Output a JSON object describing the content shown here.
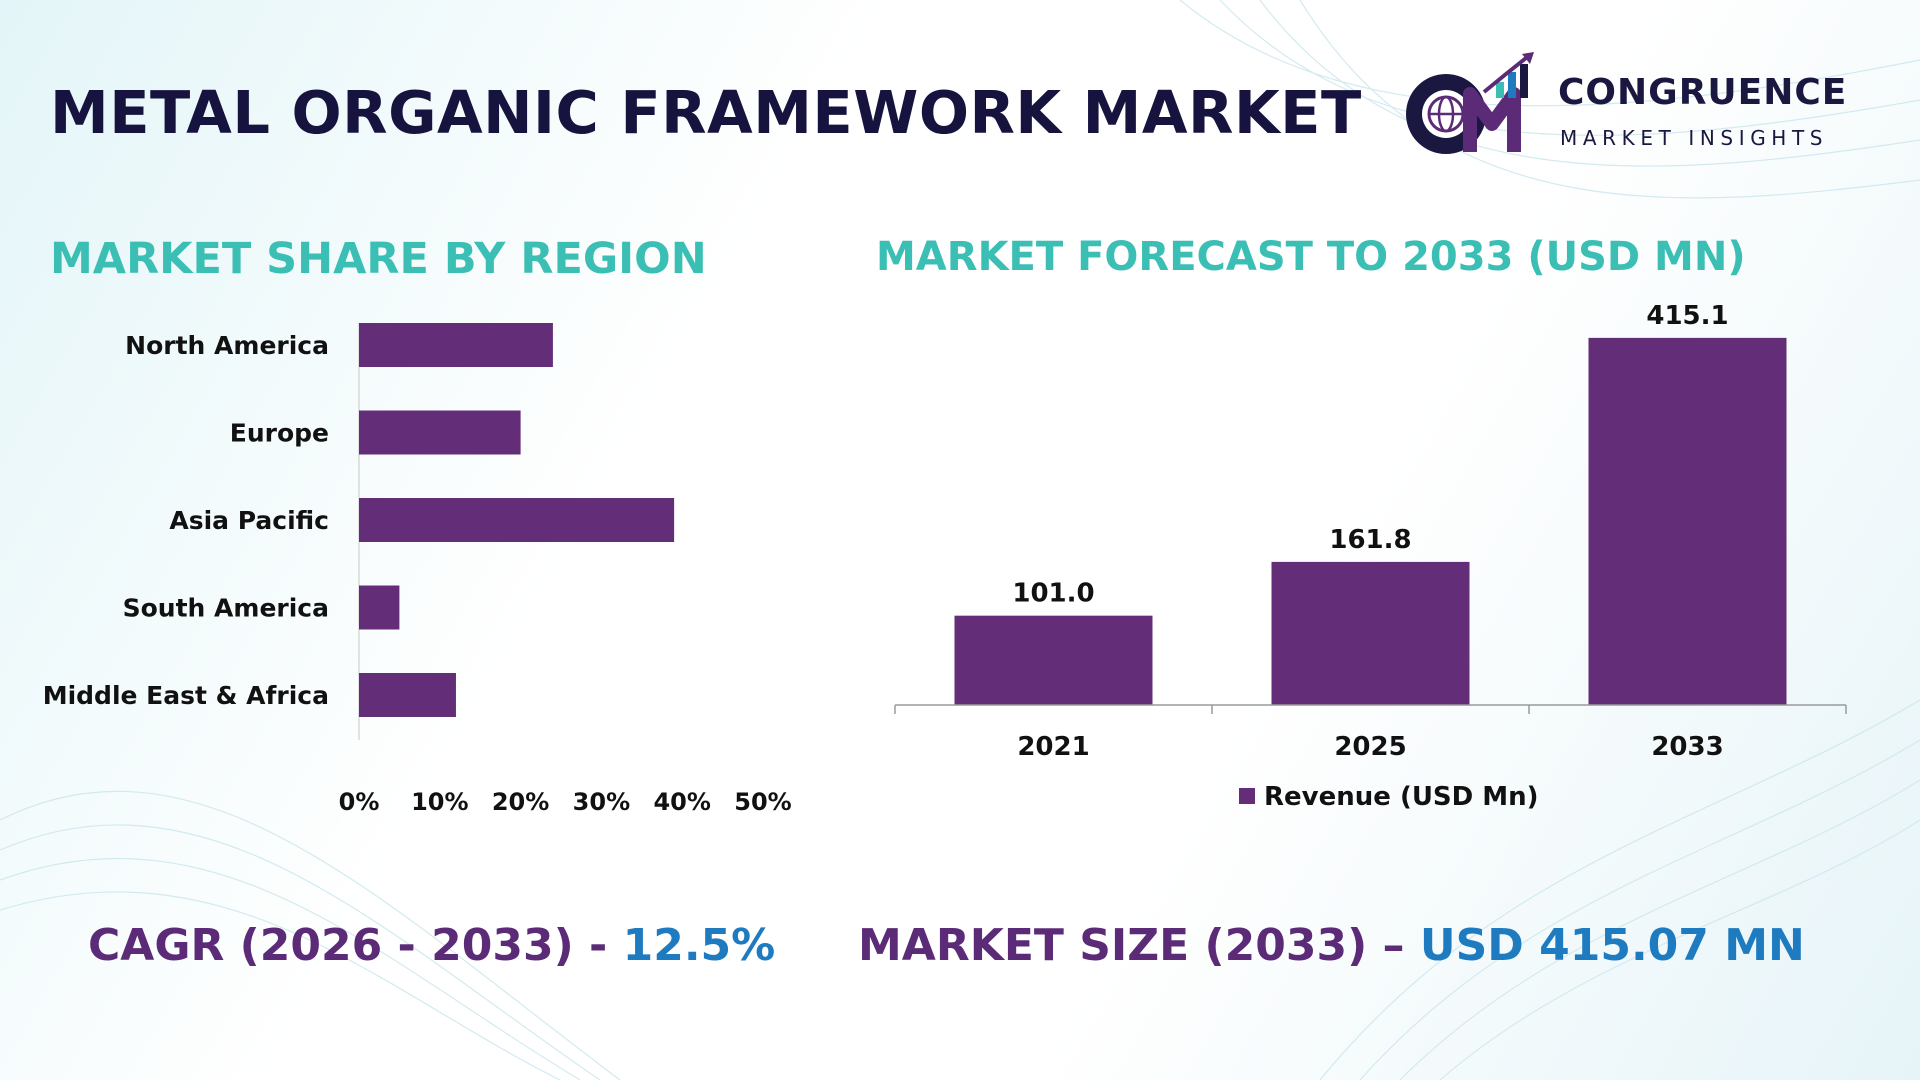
{
  "header": {
    "title": "METAL ORGANIC FRAMEWORK MARKET",
    "brand_name": "CONGRUENCE",
    "brand_tagline": "MARKET INSIGHTS"
  },
  "left_section": {
    "title": "MARKET SHARE BY REGION"
  },
  "right_section": {
    "title": "MARKET FORECAST TO 2033 (USD MN)"
  },
  "colors": {
    "bar": "#632d78",
    "section_title": "#3bbfb4",
    "kpi_label": "#5c2b78",
    "kpi_value": "#1e7bbf",
    "title": "#16133f"
  },
  "chart_data": [
    {
      "type": "bar",
      "orientation": "horizontal",
      "categories": [
        "North America",
        "Europe",
        "Asia Pacific",
        "South America",
        "Middle East & Africa"
      ],
      "values": [
        24,
        20,
        39,
        5,
        12
      ],
      "unit": "%",
      "xlim": [
        0,
        50
      ],
      "ticks": [
        "0%",
        "10%",
        "20%",
        "30%",
        "40%",
        "50%"
      ],
      "grid": false,
      "legend": "none"
    },
    {
      "type": "bar",
      "orientation": "vertical",
      "categories": [
        "2021",
        "2025",
        "2033"
      ],
      "series": [
        {
          "name": "Revenue (USD Mn)",
          "values": [
            101.0,
            161.8,
            415.1
          ]
        }
      ],
      "data_labels": [
        "101.0",
        "161.8",
        "415.1"
      ],
      "ylim": [
        0,
        450
      ],
      "grid": false,
      "legend": "bottom"
    }
  ],
  "kpis": {
    "cagr_label": "CAGR (2026 - 2033) - ",
    "cagr_value": "12.5%",
    "size_label": "MARKET SIZE (2033) – ",
    "size_value": "USD 415.07 MN"
  }
}
